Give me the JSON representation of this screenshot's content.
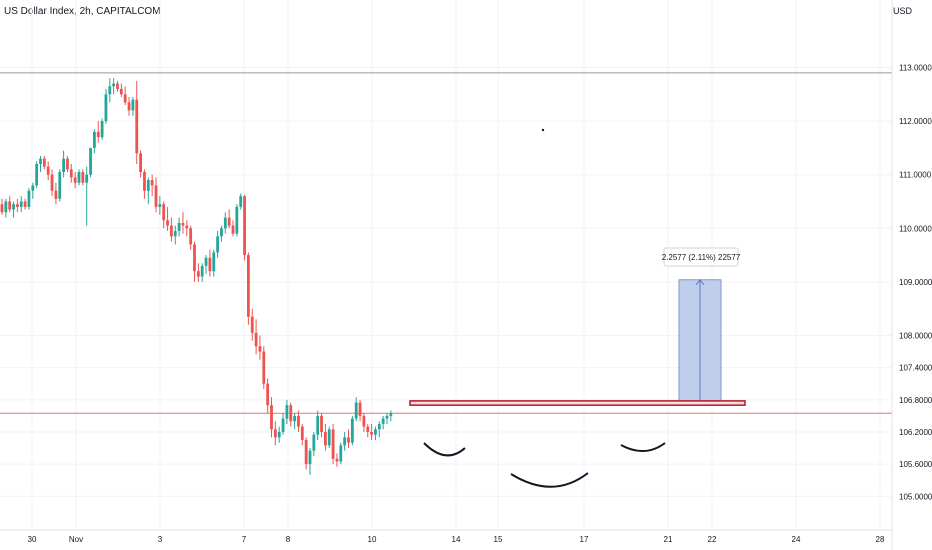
{
  "header": {
    "title": "US Dollar Index, 2h, CAPITALCOM",
    "currency": "USD"
  },
  "chart_data": {
    "type": "candlestick",
    "title": "US Dollar Index, 2h, CAPITALCOM",
    "y_axis": {
      "ticks": [
        "113.0000",
        "112.0000",
        "111.0000",
        "110.0000",
        "109.0000",
        "108.0000",
        "107.4000",
        "106.8000",
        "106.2000",
        "105.6000",
        "105.0000"
      ],
      "tick_values": [
        113.0,
        112.0,
        111.0,
        110.0,
        109.0,
        108.0,
        107.4,
        106.8,
        106.2,
        105.6,
        105.0
      ],
      "position": "right"
    },
    "x_axis": {
      "ticks": [
        "30",
        "Nov",
        "3",
        "7",
        "8",
        "10",
        "14",
        "15",
        "17",
        "21",
        "22",
        "24",
        "28"
      ]
    },
    "grid": true,
    "colors": {
      "up": "#26a69a",
      "down": "#ef5350",
      "measure_fill": "#b3c6e8",
      "measure_border": "#7e9ad0",
      "resistance": "#b2182b"
    },
    "horizontal_lines": [
      {
        "value": 112.9,
        "color": "#9598a1"
      },
      {
        "value": 106.55,
        "color": "#e57373"
      }
    ],
    "resistance_zone": {
      "low": 106.7,
      "high": 106.78
    },
    "measure": {
      "label": "2.2577 (2.11%) 22577",
      "from": 106.78,
      "to": 109.04
    },
    "series": [
      {
        "name": "candles",
        "values": [
          [
            110.45,
            110.55,
            110.25,
            110.3
          ],
          [
            110.3,
            110.55,
            110.2,
            110.5
          ],
          [
            110.5,
            110.6,
            110.3,
            110.35
          ],
          [
            110.35,
            110.5,
            110.2,
            110.45
          ],
          [
            110.45,
            110.55,
            110.3,
            110.4
          ],
          [
            110.4,
            110.6,
            110.3,
            110.5
          ],
          [
            110.5,
            110.55,
            110.35,
            110.4
          ],
          [
            110.4,
            110.75,
            110.35,
            110.7
          ],
          [
            110.7,
            110.85,
            110.55,
            110.8
          ],
          [
            110.8,
            111.25,
            110.75,
            111.2
          ],
          [
            111.2,
            111.35,
            111.05,
            111.3
          ],
          [
            111.3,
            111.35,
            111.1,
            111.15
          ],
          [
            111.15,
            111.25,
            110.9,
            111.0
          ],
          [
            111.0,
            111.1,
            110.6,
            110.7
          ],
          [
            110.7,
            110.85,
            110.45,
            110.55
          ],
          [
            110.55,
            111.1,
            110.5,
            111.05
          ],
          [
            111.05,
            111.45,
            110.95,
            111.3
          ],
          [
            111.3,
            111.35,
            111.05,
            111.1
          ],
          [
            111.1,
            111.2,
            110.85,
            110.95
          ],
          [
            110.95,
            111.05,
            110.75,
            110.85
          ],
          [
            110.85,
            111.1,
            110.8,
            111.05
          ],
          [
            111.05,
            111.1,
            110.8,
            110.85
          ],
          [
            110.85,
            111.15,
            110.05,
            111.0
          ],
          [
            111.0,
            111.5,
            110.95,
            111.5
          ],
          [
            111.5,
            111.85,
            111.4,
            111.8
          ],
          [
            111.8,
            112.0,
            111.6,
            111.7
          ],
          [
            111.7,
            112.05,
            111.65,
            112.0
          ],
          [
            112.0,
            112.6,
            111.95,
            112.5
          ],
          [
            112.5,
            112.8,
            112.35,
            112.65
          ],
          [
            112.65,
            112.8,
            112.5,
            112.7
          ],
          [
            112.7,
            112.75,
            112.55,
            112.6
          ],
          [
            112.6,
            112.7,
            112.45,
            112.5
          ],
          [
            112.5,
            112.65,
            112.3,
            112.35
          ],
          [
            112.35,
            112.45,
            112.1,
            112.2
          ],
          [
            112.2,
            112.45,
            112.1,
            112.4
          ],
          [
            112.4,
            112.75,
            111.2,
            111.4
          ],
          [
            111.4,
            111.45,
            110.95,
            111.05
          ],
          [
            111.05,
            111.1,
            110.55,
            110.7
          ],
          [
            110.7,
            110.95,
            110.45,
            110.9
          ],
          [
            110.9,
            111.0,
            110.6,
            110.8
          ],
          [
            110.8,
            110.95,
            110.3,
            110.4
          ],
          [
            110.4,
            110.6,
            110.25,
            110.45
          ],
          [
            110.45,
            110.5,
            110.0,
            110.15
          ],
          [
            110.15,
            110.4,
            109.95,
            110.05
          ],
          [
            110.05,
            110.2,
            109.75,
            109.85
          ],
          [
            109.85,
            110.05,
            109.7,
            109.95
          ],
          [
            109.95,
            110.2,
            109.85,
            110.1
          ],
          [
            110.1,
            110.3,
            109.9,
            110.05
          ],
          [
            110.05,
            110.15,
            109.85,
            110.0
          ],
          [
            110.0,
            110.05,
            109.6,
            109.7
          ],
          [
            109.7,
            109.75,
            109.0,
            109.2
          ],
          [
            109.2,
            109.35,
            109.0,
            109.1
          ],
          [
            109.1,
            109.35,
            109.0,
            109.3
          ],
          [
            109.3,
            109.5,
            109.15,
            109.45
          ],
          [
            109.45,
            109.6,
            109.1,
            109.2
          ],
          [
            109.2,
            109.6,
            109.1,
            109.55
          ],
          [
            109.55,
            109.95,
            109.45,
            109.85
          ],
          [
            109.85,
            110.05,
            109.75,
            110.0
          ],
          [
            110.0,
            110.3,
            109.9,
            110.2
          ],
          [
            110.2,
            110.35,
            110.0,
            110.05
          ],
          [
            110.05,
            110.15,
            109.85,
            109.9
          ],
          [
            109.9,
            110.45,
            109.85,
            110.4
          ],
          [
            110.4,
            110.65,
            110.35,
            110.6
          ],
          [
            110.6,
            110.62,
            109.4,
            109.5
          ],
          [
            109.5,
            109.55,
            108.2,
            108.35
          ],
          [
            108.35,
            108.5,
            107.9,
            108.05
          ],
          [
            108.05,
            108.3,
            107.65,
            107.8
          ],
          [
            107.8,
            108.0,
            107.55,
            107.7
          ],
          [
            107.7,
            107.8,
            107.0,
            107.1
          ],
          [
            107.1,
            107.2,
            106.55,
            106.7
          ],
          [
            106.7,
            106.85,
            106.1,
            106.25
          ],
          [
            106.25,
            106.4,
            105.95,
            106.1
          ],
          [
            106.1,
            106.3,
            106.0,
            106.2
          ],
          [
            106.2,
            106.55,
            106.15,
            106.45
          ],
          [
            106.45,
            106.8,
            106.35,
            106.7
          ],
          [
            106.7,
            106.75,
            106.3,
            106.4
          ],
          [
            106.4,
            106.55,
            106.25,
            106.5
          ],
          [
            106.5,
            106.6,
            106.2,
            106.3
          ],
          [
            106.3,
            106.35,
            105.95,
            106.05
          ],
          [
            106.05,
            106.1,
            105.5,
            105.6
          ],
          [
            105.6,
            105.9,
            105.4,
            105.85
          ],
          [
            105.85,
            106.2,
            105.75,
            106.15
          ],
          [
            106.15,
            106.6,
            106.05,
            106.5
          ],
          [
            106.5,
            106.55,
            106.1,
            106.2
          ],
          [
            106.2,
            106.35,
            105.85,
            105.95
          ],
          [
            105.95,
            106.3,
            105.9,
            106.25
          ],
          [
            106.25,
            106.35,
            105.6,
            105.7
          ],
          [
            105.7,
            105.8,
            105.55,
            105.65
          ],
          [
            105.65,
            106.0,
            105.6,
            105.95
          ],
          [
            105.95,
            106.2,
            105.85,
            106.1
          ],
          [
            106.1,
            106.25,
            105.9,
            106.0
          ],
          [
            106.0,
            106.5,
            105.95,
            106.45
          ],
          [
            106.45,
            106.85,
            106.4,
            106.75
          ],
          [
            106.75,
            106.8,
            106.4,
            106.5
          ],
          [
            106.5,
            106.55,
            106.2,
            106.3
          ],
          [
            106.3,
            106.35,
            106.1,
            106.2
          ],
          [
            106.2,
            106.35,
            106.05,
            106.15
          ],
          [
            106.15,
            106.3,
            106.05,
            106.25
          ],
          [
            106.25,
            106.4,
            106.1,
            106.35
          ],
          [
            106.35,
            106.5,
            106.25,
            106.45
          ],
          [
            106.45,
            106.55,
            106.35,
            106.5
          ],
          [
            106.5,
            106.6,
            106.4,
            106.55
          ]
        ]
      }
    ],
    "annotations": [
      "left-shoulder",
      "head",
      "right-shoulder"
    ]
  }
}
